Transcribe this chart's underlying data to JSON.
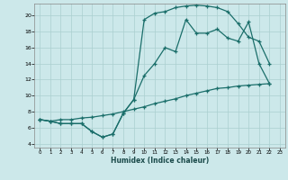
{
  "xlabel": "Humidex (Indice chaleur)",
  "bg_color": "#cce8ea",
  "grid_color": "#aacfcf",
  "line_color": "#1a6e6a",
  "xlim": [
    -0.5,
    23.5
  ],
  "ylim": [
    3.5,
    21.5
  ],
  "xticks": [
    0,
    1,
    2,
    3,
    4,
    5,
    6,
    7,
    8,
    9,
    10,
    11,
    12,
    13,
    14,
    15,
    16,
    17,
    18,
    19,
    20,
    21,
    22,
    23
  ],
  "yticks": [
    4,
    6,
    8,
    10,
    12,
    14,
    16,
    18,
    20
  ],
  "line1_x": [
    0,
    1,
    2,
    3,
    4,
    5,
    6,
    7,
    8,
    9,
    10,
    11,
    12,
    13,
    14,
    15,
    16,
    17,
    18,
    19,
    20,
    21,
    22
  ],
  "line1_y": [
    7.0,
    6.8,
    6.5,
    6.5,
    6.5,
    5.5,
    4.8,
    5.2,
    7.8,
    9.5,
    12.5,
    14.0,
    16.0,
    15.5,
    19.5,
    17.8,
    17.8,
    18.3,
    17.2,
    16.8,
    19.2,
    14.0,
    11.5
  ],
  "line2_x": [
    0,
    1,
    2,
    3,
    4,
    5,
    6,
    7,
    8,
    9,
    10,
    11,
    12,
    13,
    14,
    15,
    16,
    17,
    18,
    19,
    20,
    21,
    22
  ],
  "line2_y": [
    7.0,
    6.8,
    6.5,
    6.5,
    6.5,
    5.5,
    4.8,
    5.2,
    7.8,
    9.5,
    19.5,
    20.3,
    20.5,
    21.0,
    21.2,
    21.3,
    21.2,
    21.0,
    20.5,
    19.0,
    17.3,
    16.8,
    14.0
  ],
  "line3_x": [
    0,
    1,
    2,
    3,
    4,
    5,
    6,
    7,
    8,
    9,
    10,
    11,
    12,
    13,
    14,
    15,
    16,
    17,
    18,
    19,
    20,
    21,
    22
  ],
  "line3_y": [
    7.0,
    6.8,
    7.0,
    7.0,
    7.2,
    7.3,
    7.5,
    7.7,
    8.0,
    8.3,
    8.6,
    9.0,
    9.3,
    9.6,
    10.0,
    10.3,
    10.6,
    10.9,
    11.0,
    11.2,
    11.3,
    11.4,
    11.5
  ]
}
